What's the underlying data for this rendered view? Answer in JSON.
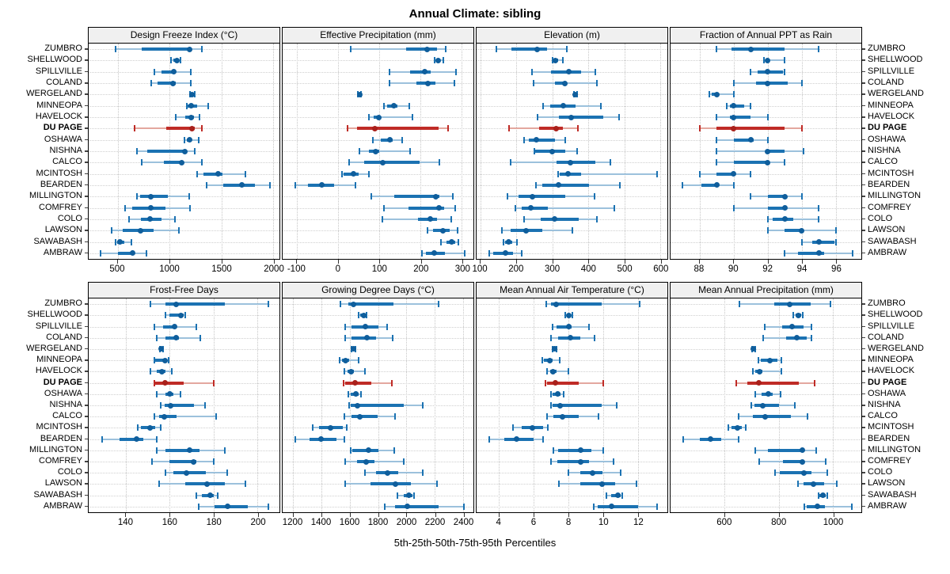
{
  "title": "Annual Climate: sibling",
  "caption": "5th-25th-50th-75th-95th Percentiles",
  "percentiles": [
    "5th",
    "25th",
    "50th",
    "75th",
    "95th"
  ],
  "highlight": "DU PAGE",
  "colors": {
    "blue_main": "#1b72b2",
    "blue_light": "#9cc1dc",
    "blue_dot": "#0f5e9c",
    "red_main": "#bf2b26",
    "red_light": "#e3a79f",
    "red_dot": "#a9201b",
    "grid": "#c8c8c8",
    "header_bg": "#f0f0f0",
    "border": "#000000"
  },
  "categories": [
    "ZUMBRO",
    "SHELLWOOD",
    "SPILLVILLE",
    "COLAND",
    "WERGELAND",
    "MINNEOPA",
    "HAVELOCK",
    "DU PAGE",
    "OSHAWA",
    "NISHNA",
    "CALCO",
    "MCINTOSH",
    "BEARDEN",
    "MILLINGTON",
    "COMFREY",
    "COLO",
    "LAWSON",
    "SAWABASH",
    "AMBRAW"
  ],
  "chart_data": [
    {
      "type": "interval",
      "row": "top",
      "title": "Design Freeze Index (°C)",
      "xlim": [
        220,
        2060
      ],
      "ticks": [
        500,
        1000,
        1500,
        2000
      ],
      "values": [
        [
          480,
          730,
          1190,
          1215,
          1310
        ],
        [
          1015,
          1035,
          1070,
          1090,
          1105
        ],
        [
          850,
          920,
          1040,
          1060,
          1205
        ],
        [
          825,
          885,
          1030,
          1060,
          1205
        ],
        [
          1200,
          1210,
          1220,
          1230,
          1240
        ],
        [
          1165,
          1170,
          1210,
          1265,
          1375
        ],
        [
          1060,
          1155,
          1210,
          1235,
          1290
        ],
        [
          665,
          970,
          1220,
          1240,
          1315
        ],
        [
          1140,
          1165,
          1195,
          1215,
          1280
        ],
        [
          685,
          785,
          1150,
          1170,
          1245
        ],
        [
          735,
          945,
          1115,
          1140,
          1310
        ],
        [
          1265,
          1330,
          1470,
          1510,
          1730
        ],
        [
          1360,
          1520,
          1695,
          1825,
          1970
        ],
        [
          685,
          715,
          820,
          985,
          1190
        ],
        [
          570,
          640,
          820,
          960,
          1195
        ],
        [
          610,
          725,
          810,
          920,
          1050
        ],
        [
          445,
          550,
          720,
          845,
          1090
        ],
        [
          480,
          495,
          520,
          560,
          635
        ],
        [
          335,
          500,
          640,
          655,
          775
        ]
      ]
    },
    {
      "type": "interval",
      "row": "top",
      "title": "Effective Precipitation (mm)",
      "xlim": [
        -135,
        328
      ],
      "ticks": [
        -100,
        0,
        100,
        200,
        300
      ],
      "values": [
        [
          30,
          165,
          215,
          240,
          260
        ],
        [
          233,
          238,
          242,
          248,
          255
        ],
        [
          125,
          175,
          210,
          225,
          285
        ],
        [
          125,
          190,
          218,
          236,
          282
        ],
        [
          48,
          50,
          52,
          54,
          56
        ],
        [
          110,
          118,
          135,
          144,
          172
        ],
        [
          75,
          85,
          98,
          103,
          180
        ],
        [
          23,
          45,
          88,
          243,
          266
        ],
        [
          84,
          103,
          125,
          132,
          155
        ],
        [
          52,
          74,
          91,
          100,
          175
        ],
        [
          27,
          62,
          108,
          198,
          246
        ],
        [
          9,
          12,
          37,
          49,
          74
        ],
        [
          -105,
          -73,
          -40,
          -11,
          41
        ],
        [
          80,
          135,
          236,
          246,
          279
        ],
        [
          110,
          170,
          244,
          257,
          283
        ],
        [
          108,
          193,
          224,
          239,
          274
        ],
        [
          216,
          230,
          254,
          270,
          289
        ],
        [
          249,
          262,
          276,
          284,
          291
        ],
        [
          204,
          213,
          233,
          258,
          306
        ]
      ]
    },
    {
      "type": "interval",
      "row": "top",
      "title": "Elevation (m)",
      "xlim": [
        89,
        620
      ],
      "ticks": [
        100,
        200,
        300,
        400,
        500,
        600
      ],
      "values": [
        [
          145,
          185,
          258,
          285,
          340
        ],
        [
          300,
          303,
          309,
          315,
          329
        ],
        [
          243,
          296,
          345,
          380,
          420
        ],
        [
          248,
          307,
          334,
          340,
          425
        ],
        [
          360,
          362,
          364,
          366,
          369
        ],
        [
          275,
          295,
          330,
          365,
          435
        ],
        [
          258,
          318,
          353,
          442,
          485
        ],
        [
          180,
          264,
          311,
          329,
          371
        ],
        [
          222,
          235,
          256,
          307,
          336
        ],
        [
          249,
          253,
          299,
          336,
          369
        ],
        [
          184,
          312,
          351,
          420,
          461
        ],
        [
          317,
          320,
          344,
          379,
          592
        ],
        [
          255,
          271,
          318,
          402,
          488
        ],
        [
          175,
          205,
          245,
          336,
          418
        ],
        [
          197,
          214,
          240,
          287,
          473
        ],
        [
          221,
          267,
          305,
          373,
          425
        ],
        [
          160,
          184,
          226,
          271,
          356
        ],
        [
          165,
          169,
          179,
          189,
          202
        ],
        [
          125,
          136,
          169,
          191,
          214
        ]
      ]
    },
    {
      "type": "interval",
      "row": "top",
      "title": "Fraction of Annual PPT as Rain",
      "xlim": [
        86.3,
        97.5
      ],
      "ticks": [
        88,
        90,
        92,
        94,
        96
      ],
      "values": [
        [
          89.0,
          89.9,
          91.0,
          93.0,
          95.0
        ],
        [
          91.8,
          91.9,
          92.0,
          92.1,
          93.0
        ],
        [
          91.0,
          91.4,
          92.0,
          92.9,
          93.0
        ],
        [
          90.0,
          91.3,
          92.0,
          93.2,
          94.0
        ],
        [
          88.6,
          88.7,
          89.0,
          89.1,
          90.0
        ],
        [
          89.6,
          89.8,
          90.0,
          90.6,
          91.0
        ],
        [
          89.0,
          89.8,
          90.0,
          91.0,
          92.0
        ],
        [
          88.0,
          89.0,
          90.0,
          93.0,
          94.0
        ],
        [
          89.0,
          90.0,
          91.0,
          91.2,
          92.0
        ],
        [
          89.0,
          91.9,
          92.0,
          93.0,
          94.1
        ],
        [
          89.0,
          90.0,
          92.0,
          92.1,
          93.0
        ],
        [
          88.0,
          89.0,
          90.0,
          90.1,
          91.0
        ],
        [
          87.0,
          88.1,
          89.0,
          89.1,
          90.0
        ],
        [
          91.0,
          92.0,
          93.0,
          93.1,
          94.0
        ],
        [
          90.0,
          92.0,
          93.0,
          93.1,
          95.0
        ],
        [
          92.0,
          92.3,
          93.0,
          93.5,
          95.0
        ],
        [
          92.0,
          93.0,
          94.0,
          94.1,
          96.0
        ],
        [
          94.0,
          94.6,
          95.0,
          95.9,
          96.0
        ],
        [
          93.0,
          93.8,
          95.0,
          95.3,
          97.0
        ]
      ]
    },
    {
      "type": "interval",
      "row": "bottom",
      "title": "Frost-Free Days",
      "xlim": [
        123,
        210
      ],
      "ticks": [
        140,
        160,
        180,
        200
      ],
      "values": [
        [
          151,
          158,
          163,
          185,
          205
        ],
        [
          158,
          160,
          165,
          166.5,
          167
        ],
        [
          153,
          157,
          162,
          163,
          172
        ],
        [
          154,
          158,
          163,
          164,
          174
        ],
        [
          155.5,
          155.8,
          156,
          156.3,
          156.8
        ],
        [
          153,
          153.5,
          158,
          158.5,
          159.5
        ],
        [
          151,
          154,
          156.5,
          158,
          161
        ],
        [
          153,
          153.5,
          158,
          166.5,
          180
        ],
        [
          154,
          158,
          160,
          161.5,
          165
        ],
        [
          156,
          157.5,
          160.5,
          171,
          176
        ],
        [
          153,
          155,
          157.5,
          163,
          181
        ],
        [
          145.5,
          147,
          151,
          153.5,
          156
        ],
        [
          129,
          137,
          145,
          148,
          154
        ],
        [
          154,
          158,
          169,
          173.5,
          185
        ],
        [
          152,
          160,
          171,
          172,
          180
        ],
        [
          158,
          161.5,
          167.5,
          176.5,
          186
        ],
        [
          155,
          167,
          177,
          185,
          194.5
        ],
        [
          172,
          174.5,
          178.5,
          180,
          182
        ],
        [
          173,
          180.5,
          186.5,
          195.5,
          205
        ]
      ]
    },
    {
      "type": "interval",
      "row": "bottom",
      "title": "Growing Degree Days (°C)",
      "xlim": [
        1125,
        2475
      ],
      "ticks": [
        1200,
        1400,
        1600,
        1800,
        2000,
        2200,
        2400
      ],
      "values": [
        [
          1535,
          1590,
          1625,
          1910,
          2230
        ],
        [
          1665,
          1675,
          1700,
          1710,
          1720
        ],
        [
          1570,
          1610,
          1710,
          1805,
          1865
        ],
        [
          1570,
          1615,
          1720,
          1785,
          1905
        ],
        [
          1615,
          1620,
          1625,
          1630,
          1640
        ],
        [
          1530,
          1545,
          1570,
          1595,
          1660
        ],
        [
          1560,
          1585,
          1610,
          1630,
          1710
        ],
        [
          1555,
          1565,
          1640,
          1755,
          1900
        ],
        [
          1590,
          1605,
          1645,
          1665,
          1680
        ],
        [
          1595,
          1605,
          1655,
          1980,
          2115
        ],
        [
          1560,
          1610,
          1670,
          1800,
          1920
        ],
        [
          1340,
          1385,
          1465,
          1550,
          1580
        ],
        [
          1215,
          1315,
          1395,
          1505,
          1560
        ],
        [
          1605,
          1620,
          1730,
          1805,
          1915
        ],
        [
          1570,
          1650,
          1715,
          1775,
          1980
        ],
        [
          1710,
          1785,
          1870,
          1945,
          2115
        ],
        [
          1565,
          1745,
          1925,
          2035,
          2215
        ],
        [
          1940,
          1980,
          2020,
          2045,
          2055
        ],
        [
          1845,
          1920,
          2005,
          2230,
          2405
        ]
      ]
    },
    {
      "type": "interval",
      "row": "bottom",
      "title": "Mean Annual Air Temperature (°C)",
      "xlim": [
        2.7,
        13.7
      ],
      "ticks": [
        4,
        6,
        8,
        10,
        12
      ],
      "values": [
        [
          6.7,
          7.0,
          7.3,
          9.9,
          12.1
        ],
        [
          7.8,
          7.9,
          8.0,
          8.1,
          8.2
        ],
        [
          7.1,
          7.3,
          8.0,
          8.2,
          9.2
        ],
        [
          7.0,
          7.4,
          8.1,
          8.7,
          9.5
        ],
        [
          7.1,
          7.15,
          7.2,
          7.25,
          7.3
        ],
        [
          6.5,
          6.6,
          6.9,
          7.1,
          7.5
        ],
        [
          6.75,
          6.95,
          7.1,
          7.3,
          8.0
        ],
        [
          6.65,
          6.75,
          7.25,
          8.6,
          10.0
        ],
        [
          7.0,
          7.1,
          7.4,
          7.55,
          7.7
        ],
        [
          7.0,
          7.1,
          7.5,
          9.9,
          10.8
        ],
        [
          6.75,
          7.15,
          7.65,
          8.6,
          9.75
        ],
        [
          4.8,
          5.3,
          5.9,
          6.55,
          6.8
        ],
        [
          3.45,
          4.3,
          5.0,
          6.0,
          6.55
        ],
        [
          7.15,
          7.4,
          8.7,
          9.3,
          10.0
        ],
        [
          7.0,
          7.35,
          8.7,
          9.2,
          10.6
        ],
        [
          8.0,
          8.7,
          9.4,
          9.95,
          11.0
        ],
        [
          7.45,
          8.7,
          9.95,
          10.7,
          11.9
        ],
        [
          10.2,
          10.45,
          10.85,
          11.0,
          11.1
        ],
        [
          9.45,
          9.7,
          10.5,
          12.0,
          13.1
        ]
      ]
    },
    {
      "type": "interval",
      "row": "bottom",
      "title": "Mean Annual Precipitation (mm)",
      "xlim": [
        400,
        1106
      ],
      "ticks": [
        600,
        800,
        1000
      ],
      "values": [
        [
          655,
          785,
          840,
          918,
          993
        ],
        [
          855,
          862,
          874,
          883,
          889
        ],
        [
          748,
          814,
          850,
          893,
          922
        ],
        [
          743,
          828,
          866,
          903,
          920
        ],
        [
          702,
          704,
          707,
          710,
          712
        ],
        [
          724,
          734,
          768,
          795,
          811
        ],
        [
          705,
          714,
          729,
          740,
          811
        ],
        [
          642,
          683,
          726,
          874,
          932
        ],
        [
          714,
          738,
          761,
          777,
          808
        ],
        [
          698,
          711,
          741,
          801,
          860
        ],
        [
          651,
          705,
          750,
          845,
          908
        ],
        [
          615,
          627,
          648,
          663,
          678
        ],
        [
          446,
          508,
          547,
          588,
          653
        ],
        [
          714,
          760,
          889,
          893,
          940
        ],
        [
          729,
          816,
          889,
          895,
          973
        ],
        [
          787,
          804,
          895,
          922,
          979
        ],
        [
          872,
          891,
          930,
          969,
          1014
        ],
        [
          947,
          952,
          963,
          975,
          979
        ],
        [
          895,
          903,
          942,
          972,
          1070
        ]
      ]
    }
  ]
}
